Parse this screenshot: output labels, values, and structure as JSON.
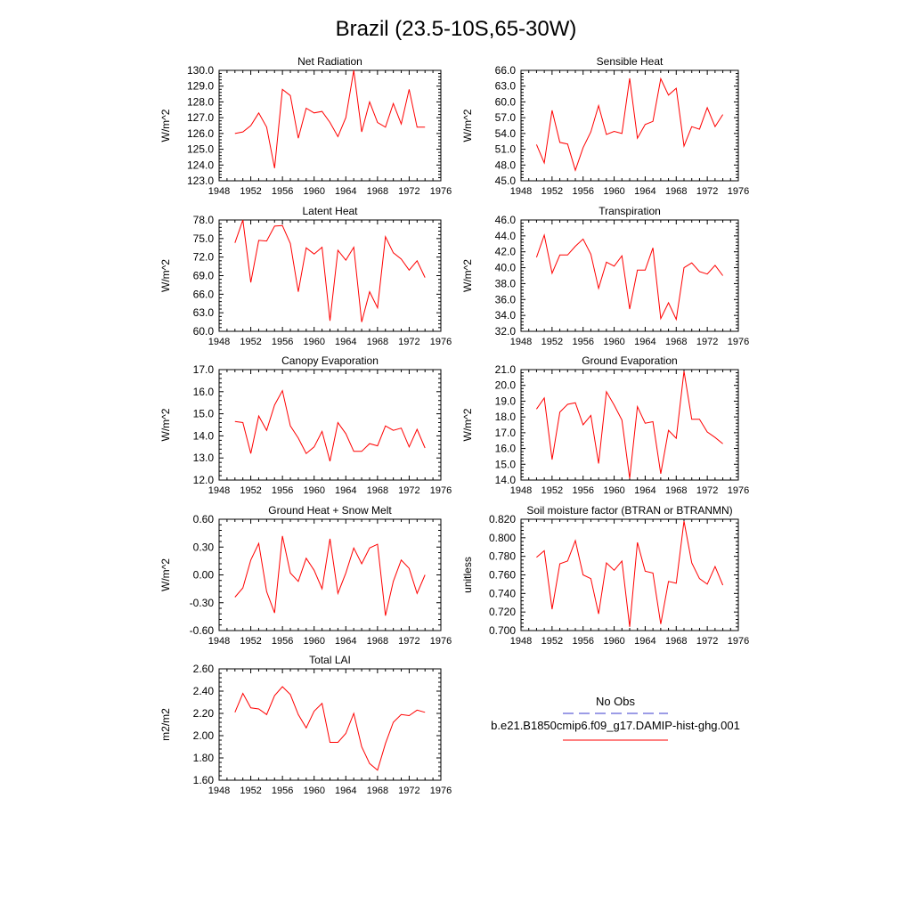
{
  "title": "Brazil (23.5-10S,65-30W)",
  "legend": {
    "obs_label": "No Obs",
    "obs_color": "#3a3acc",
    "model_label": "b.e21.B1850cmip6.f09_g17.DAMIP-hist-ghg.001",
    "model_color": "#ff0000"
  },
  "chart_data": [
    {
      "type": "line",
      "title": "Net Radiation",
      "ylabel": "W/m^2",
      "xlim": [
        1948,
        1976
      ],
      "xticks": [
        "1948",
        "1952",
        "1956",
        "1960",
        "1964",
        "1968",
        "1972",
        "1976"
      ],
      "ylim": [
        123.0,
        130.0
      ],
      "yticks": [
        "123.0",
        "124.0",
        "125.0",
        "126.0",
        "127.0",
        "128.0",
        "129.0",
        "130.0"
      ],
      "x": [
        1950,
        1951,
        1952,
        1953,
        1954,
        1955,
        1956,
        1957,
        1958,
        1959,
        1960,
        1961,
        1962,
        1963,
        1964,
        1965,
        1966,
        1967,
        1968,
        1969,
        1970,
        1971,
        1972,
        1973,
        1974
      ],
      "series": [
        {
          "color": "#ff0000",
          "values": [
            126.0,
            126.1,
            126.5,
            127.3,
            126.4,
            123.8,
            128.8,
            128.4,
            125.7,
            127.6,
            127.3,
            127.4,
            126.7,
            125.8,
            127.0,
            130.0,
            126.1,
            128.0,
            126.7,
            126.4,
            127.9,
            126.6,
            128.8,
            126.4,
            126.4
          ]
        }
      ]
    },
    {
      "type": "line",
      "title": "Sensible Heat",
      "ylabel": "W/m^2",
      "xlim": [
        1948,
        1976
      ],
      "xticks": [
        "1948",
        "1952",
        "1956",
        "1960",
        "1964",
        "1968",
        "1972",
        "1976"
      ],
      "ylim": [
        45.0,
        66.0
      ],
      "yticks": [
        "45.0",
        "48.0",
        "51.0",
        "54.0",
        "57.0",
        "60.0",
        "63.0",
        "66.0"
      ],
      "x": [
        1950,
        1951,
        1952,
        1953,
        1954,
        1955,
        1956,
        1957,
        1958,
        1959,
        1960,
        1961,
        1962,
        1963,
        1964,
        1965,
        1966,
        1967,
        1968,
        1969,
        1970,
        1971,
        1972,
        1973,
        1974
      ],
      "series": [
        {
          "color": "#ff0000",
          "values": [
            51.9,
            48.4,
            58.4,
            52.3,
            52.0,
            47.0,
            51.3,
            54.3,
            59.3,
            53.8,
            54.4,
            54.0,
            64.5,
            53.1,
            55.7,
            56.3,
            64.4,
            61.3,
            62.6,
            51.6,
            55.3,
            54.8,
            58.9,
            55.3,
            57.6
          ]
        }
      ]
    },
    {
      "type": "line",
      "title": "Latent Heat",
      "ylabel": "W/m^2",
      "xlim": [
        1948,
        1976
      ],
      "xticks": [
        "1948",
        "1952",
        "1956",
        "1960",
        "1964",
        "1968",
        "1972",
        "1976"
      ],
      "ylim": [
        60.0,
        78.0
      ],
      "yticks": [
        "60.0",
        "63.0",
        "66.0",
        "69.0",
        "72.0",
        "75.0",
        "78.0"
      ],
      "x": [
        1950,
        1951,
        1952,
        1953,
        1954,
        1955,
        1956,
        1957,
        1958,
        1959,
        1960,
        1961,
        1962,
        1963,
        1964,
        1965,
        1966,
        1967,
        1968,
        1969,
        1970,
        1971,
        1972,
        1973,
        1974
      ],
      "series": [
        {
          "color": "#ff0000",
          "values": [
            74.3,
            78.0,
            67.9,
            74.7,
            74.6,
            77.0,
            77.1,
            74.2,
            66.4,
            73.5,
            72.5,
            73.6,
            61.7,
            73.1,
            71.5,
            73.6,
            61.5,
            66.4,
            63.8,
            75.3,
            72.7,
            71.7,
            69.9,
            71.4,
            68.7
          ]
        }
      ]
    },
    {
      "type": "line",
      "title": "Transpiration",
      "ylabel": "W/m^2",
      "xlim": [
        1948,
        1976
      ],
      "xticks": [
        "1948",
        "1952",
        "1956",
        "1960",
        "1964",
        "1968",
        "1972",
        "1976"
      ],
      "ylim": [
        32.0,
        46.0
      ],
      "yticks": [
        "32.0",
        "34.0",
        "36.0",
        "38.0",
        "40.0",
        "42.0",
        "44.0",
        "46.0"
      ],
      "x": [
        1950,
        1951,
        1952,
        1953,
        1954,
        1955,
        1956,
        1957,
        1958,
        1959,
        1960,
        1961,
        1962,
        1963,
        1964,
        1965,
        1966,
        1967,
        1968,
        1969,
        1970,
        1971,
        1972,
        1973,
        1974
      ],
      "series": [
        {
          "color": "#ff0000",
          "values": [
            41.3,
            44.1,
            39.3,
            41.6,
            41.6,
            42.7,
            43.6,
            41.7,
            37.4,
            40.7,
            40.2,
            41.5,
            34.8,
            39.7,
            39.7,
            42.5,
            33.6,
            35.6,
            33.5,
            40.0,
            40.6,
            39.5,
            39.2,
            40.3,
            39.0
          ]
        }
      ]
    },
    {
      "type": "line",
      "title": "Canopy Evaporation",
      "ylabel": "W/m^2",
      "xlim": [
        1948,
        1976
      ],
      "xticks": [
        "1948",
        "1952",
        "1956",
        "1960",
        "1964",
        "1968",
        "1972",
        "1976"
      ],
      "ylim": [
        12.0,
        17.0
      ],
      "yticks": [
        "12.0",
        "13.0",
        "14.0",
        "15.0",
        "16.0",
        "17.0"
      ],
      "x": [
        1950,
        1951,
        1952,
        1953,
        1954,
        1955,
        1956,
        1957,
        1958,
        1959,
        1960,
        1961,
        1962,
        1963,
        1964,
        1965,
        1966,
        1967,
        1968,
        1969,
        1970,
        1971,
        1972,
        1973,
        1974
      ],
      "series": [
        {
          "color": "#ff0000",
          "values": [
            14.65,
            14.6,
            13.2,
            14.9,
            14.25,
            15.4,
            16.05,
            14.45,
            13.9,
            13.2,
            13.5,
            14.2,
            12.85,
            14.6,
            14.1,
            13.3,
            13.3,
            13.65,
            13.55,
            14.45,
            14.25,
            14.35,
            13.5,
            14.3,
            13.45
          ]
        }
      ]
    },
    {
      "type": "line",
      "title": "Ground Evaporation",
      "ylabel": "W/m^2",
      "xlim": [
        1948,
        1976
      ],
      "xticks": [
        "1948",
        "1952",
        "1956",
        "1960",
        "1964",
        "1968",
        "1972",
        "1976"
      ],
      "ylim": [
        14.0,
        21.0
      ],
      "yticks": [
        "14.0",
        "15.0",
        "16.0",
        "17.0",
        "18.0",
        "19.0",
        "20.0",
        "21.0"
      ],
      "x": [
        1950,
        1951,
        1952,
        1953,
        1954,
        1955,
        1956,
        1957,
        1958,
        1959,
        1960,
        1961,
        1962,
        1963,
        1964,
        1965,
        1966,
        1967,
        1968,
        1969,
        1970,
        1971,
        1972,
        1973,
        1974
      ],
      "series": [
        {
          "color": "#ff0000",
          "values": [
            18.5,
            19.2,
            15.3,
            18.3,
            18.8,
            18.9,
            17.5,
            18.1,
            15.05,
            19.6,
            18.75,
            17.8,
            14.1,
            18.65,
            17.6,
            17.7,
            14.4,
            17.15,
            16.65,
            20.9,
            17.85,
            17.85,
            17.05,
            16.7,
            16.3
          ]
        }
      ]
    },
    {
      "type": "line",
      "title": "Ground Heat + Snow Melt",
      "ylabel": "W/m^2",
      "xlim": [
        1948,
        1976
      ],
      "xticks": [
        "1948",
        "1952",
        "1956",
        "1960",
        "1964",
        "1968",
        "1972",
        "1976"
      ],
      "ylim": [
        -0.6,
        0.6
      ],
      "yticks": [
        "-0.60",
        "-0.30",
        "0.00",
        "0.30",
        "0.60"
      ],
      "x": [
        1950,
        1951,
        1952,
        1953,
        1954,
        1955,
        1956,
        1957,
        1958,
        1959,
        1960,
        1961,
        1962,
        1963,
        1964,
        1965,
        1966,
        1967,
        1968,
        1969,
        1970,
        1971,
        1972,
        1973,
        1974
      ],
      "series": [
        {
          "color": "#ff0000",
          "values": [
            -0.24,
            -0.14,
            0.16,
            0.34,
            -0.18,
            -0.41,
            0.42,
            0.02,
            -0.07,
            0.18,
            0.05,
            -0.15,
            0.39,
            -0.2,
            0.02,
            0.29,
            0.12,
            0.29,
            0.33,
            -0.44,
            -0.07,
            0.16,
            0.07,
            -0.2,
            0.0
          ]
        }
      ]
    },
    {
      "type": "line",
      "title": "Soil moisture factor (BTRAN or BTRANMN)",
      "ylabel": "unitless",
      "xlim": [
        1948,
        1976
      ],
      "xticks": [
        "1948",
        "1952",
        "1956",
        "1960",
        "1964",
        "1968",
        "1972",
        "1976"
      ],
      "ylim": [
        0.7,
        0.82
      ],
      "yticks": [
        "0.700",
        "0.720",
        "0.740",
        "0.760",
        "0.780",
        "0.800",
        "0.820"
      ],
      "x": [
        1950,
        1951,
        1952,
        1953,
        1954,
        1955,
        1956,
        1957,
        1958,
        1959,
        1960,
        1961,
        1962,
        1963,
        1964,
        1965,
        1966,
        1967,
        1968,
        1969,
        1970,
        1971,
        1972,
        1973,
        1974
      ],
      "series": [
        {
          "color": "#ff0000",
          "values": [
            0.779,
            0.786,
            0.723,
            0.772,
            0.775,
            0.797,
            0.76,
            0.756,
            0.718,
            0.773,
            0.765,
            0.775,
            0.704,
            0.795,
            0.764,
            0.762,
            0.707,
            0.753,
            0.751,
            0.818,
            0.773,
            0.756,
            0.75,
            0.769,
            0.749
          ]
        }
      ]
    },
    {
      "type": "line",
      "title": "Total LAI",
      "ylabel": "m2/m2",
      "xlim": [
        1948,
        1976
      ],
      "xticks": [
        "1948",
        "1952",
        "1956",
        "1960",
        "1964",
        "1968",
        "1972",
        "1976"
      ],
      "ylim": [
        1.6,
        2.6
      ],
      "yticks": [
        "1.60",
        "1.80",
        "2.00",
        "2.20",
        "2.40",
        "2.60"
      ],
      "x": [
        1950,
        1951,
        1952,
        1953,
        1954,
        1955,
        1956,
        1957,
        1958,
        1959,
        1960,
        1961,
        1962,
        1963,
        1964,
        1965,
        1966,
        1967,
        1968,
        1969,
        1970,
        1971,
        1972,
        1973,
        1974
      ],
      "series": [
        {
          "color": "#ff0000",
          "values": [
            2.21,
            2.38,
            2.25,
            2.24,
            2.19,
            2.36,
            2.44,
            2.37,
            2.19,
            2.07,
            2.22,
            2.29,
            1.94,
            1.94,
            2.02,
            2.2,
            1.9,
            1.75,
            1.69,
            1.93,
            2.12,
            2.19,
            2.18,
            2.23,
            2.21
          ]
        }
      ]
    }
  ]
}
